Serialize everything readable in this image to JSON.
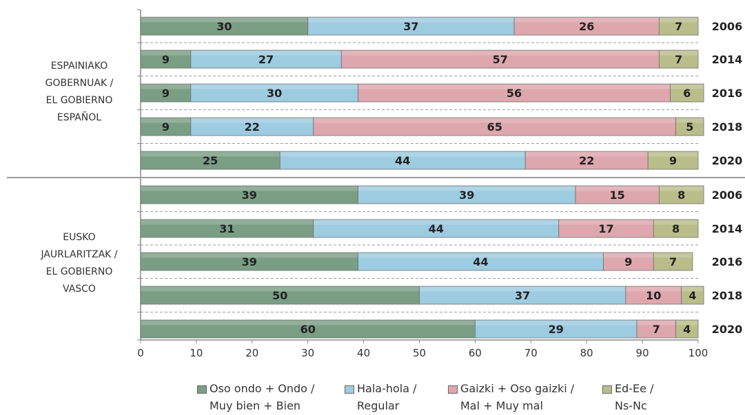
{
  "chart_data": {
    "type": "bar",
    "orientation": "horizontal",
    "stacked": true,
    "xlim": [
      0,
      100
    ],
    "xticks": [
      0,
      10,
      20,
      30,
      40,
      50,
      60,
      70,
      80,
      90,
      100
    ],
    "groups": [
      {
        "label_lines": [
          "ESPAINIAKO",
          "GOBERNUAK /",
          "EL GOBIERNO",
          "ESPAÑOL"
        ],
        "bars": [
          {
            "year": "2006",
            "values": [
              30,
              37,
              26,
              7
            ]
          },
          {
            "year": "2014",
            "values": [
              9,
              27,
              57,
              7
            ]
          },
          {
            "year": "2016",
            "values": [
              9,
              30,
              56,
              6
            ]
          },
          {
            "year": "2018",
            "values": [
              9,
              22,
              65,
              5
            ]
          },
          {
            "year": "2020",
            "values": [
              25,
              44,
              22,
              9
            ]
          }
        ]
      },
      {
        "label_lines": [
          "EUSKO",
          "JAURLARITZAK /",
          "EL GOBIERNO",
          "VASCO"
        ],
        "bars": [
          {
            "year": "2006",
            "values": [
              39,
              39,
              15,
              8
            ]
          },
          {
            "year": "2014",
            "values": [
              31,
              44,
              17,
              8
            ]
          },
          {
            "year": "2016",
            "values": [
              39,
              44,
              9,
              7
            ]
          },
          {
            "year": "2018",
            "values": [
              50,
              37,
              10,
              4
            ]
          },
          {
            "year": "2020",
            "values": [
              60,
              29,
              7,
              4
            ]
          }
        ]
      }
    ],
    "series": [
      {
        "name_lines": [
          "Oso ondo + Ondo /",
          "Muy bien + Bien"
        ],
        "color": "#7a9e84"
      },
      {
        "name_lines": [
          "Hala-hola /",
          "Regular"
        ],
        "color": "#9dcbe0"
      },
      {
        "name_lines": [
          "Gaizki + Oso gaizki /",
          "Mal + Muy mal"
        ],
        "color": "#dda7ad"
      },
      {
        "name_lines": [
          "Ed-Ee /",
          "Ns-Nc"
        ],
        "color": "#b9bd8a"
      }
    ],
    "grid": false,
    "legend_position": "bottom"
  }
}
